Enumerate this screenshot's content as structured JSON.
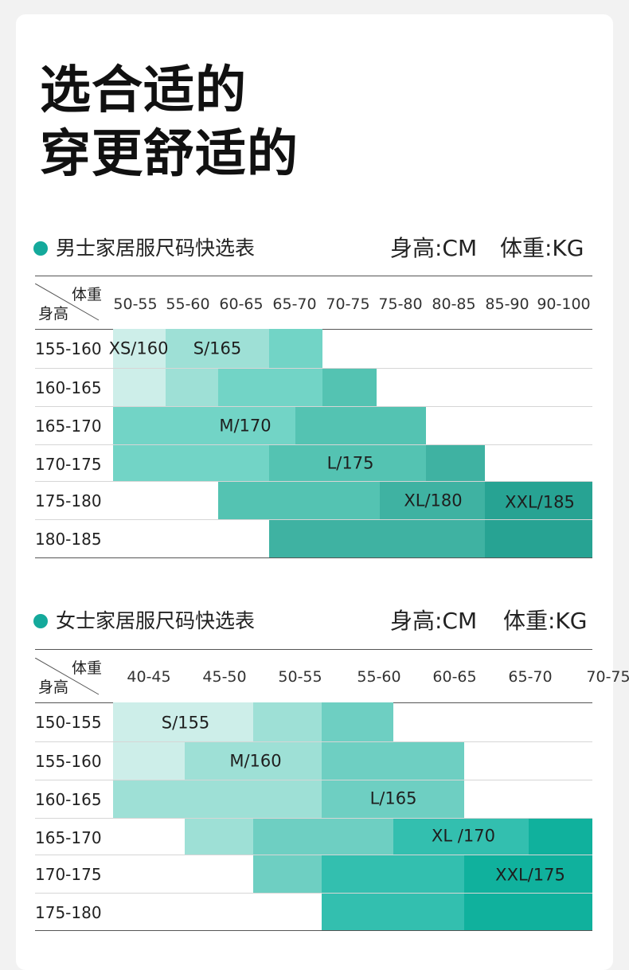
{
  "headline": {
    "line1": "选合适的",
    "line2": "穿更舒适的"
  },
  "men": {
    "title": "男士家居服尺码快选表",
    "unit_height": "身高:CM",
    "unit_weight": "体重:KG",
    "corner_weight": "体重",
    "corner_height": "身高",
    "weights": [
      "50-55",
      "55-60",
      "60-65",
      "65-70",
      "70-75",
      "75-80",
      "80-85",
      "85-90",
      "90-100"
    ],
    "heights": [
      "155-160",
      "160-165",
      "165-170",
      "170-175",
      "175-180",
      "180-185"
    ],
    "sizes": [
      "XS/160",
      "S/165",
      "M/170",
      "L/175",
      "XL/180",
      "XXL/185"
    ]
  },
  "women": {
    "title": "女士家居服尺码快选表",
    "unit_height": "身高:CM",
    "unit_weight": "体重:KG",
    "corner_weight": "体重",
    "corner_height": "身高",
    "weights": [
      "40-45",
      "45-50",
      "50-55",
      "55-60",
      "60-65",
      "65-70",
      "70-75"
    ],
    "heights": [
      "150-155",
      "155-160",
      "160-165",
      "165-170",
      "170-175",
      "175-180"
    ],
    "sizes": [
      "S/155",
      "M/160",
      "L/165",
      "XL /170",
      "XXL/175"
    ]
  },
  "colors": {
    "c1": "#cdeee9",
    "c2": "#9ee0d6",
    "c3": "#72d4c6",
    "c4": "#54c3b2",
    "c5": "#3fb2a2",
    "c6": "#27a393",
    "w3": "#6ecfc2",
    "w4": "#33bfaf",
    "w5": "#10b19d",
    "dot": "#14a99b"
  }
}
